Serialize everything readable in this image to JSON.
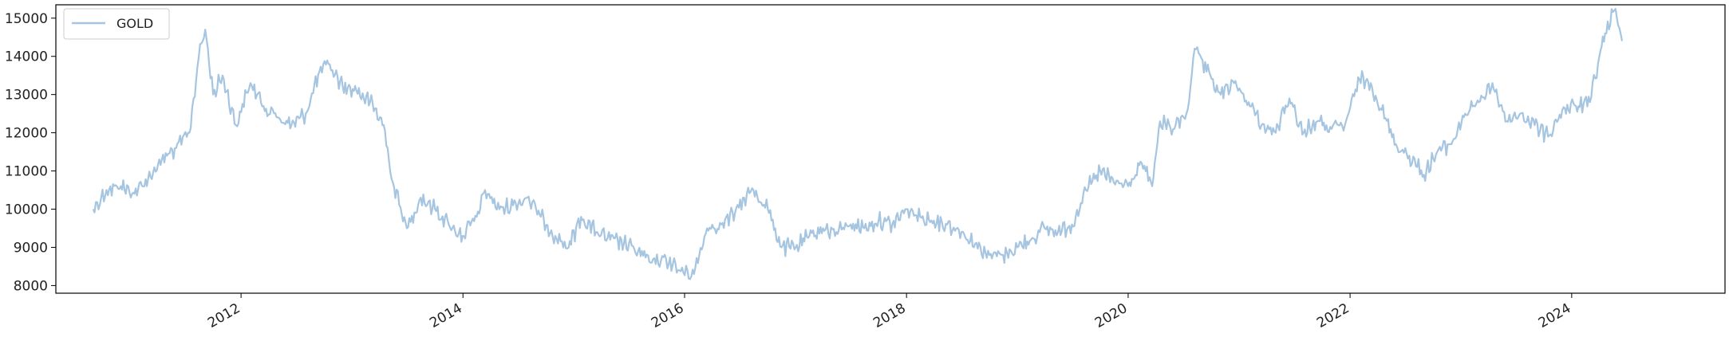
{
  "chart_data": {
    "type": "line",
    "title": "",
    "xlabel": "",
    "ylabel": "",
    "legend": {
      "placement": "top-left",
      "entries": [
        "GOLD"
      ]
    },
    "grid": false,
    "xlim": [
      "2010-05-01",
      "2025-05-20"
    ],
    "ylim": [
      7800,
      15350
    ],
    "x_ticks": [
      {
        "date": "2012-01-01",
        "label": "2012"
      },
      {
        "date": "2014-01-01",
        "label": "2014"
      },
      {
        "date": "2016-01-01",
        "label": "2016"
      },
      {
        "date": "2018-01-01",
        "label": "2018"
      },
      {
        "date": "2020-01-01",
        "label": "2020"
      },
      {
        "date": "2022-01-01",
        "label": "2022"
      },
      {
        "date": "2024-01-01",
        "label": "2024"
      }
    ],
    "y_ticks": [
      8000,
      9000,
      10000,
      11000,
      12000,
      13000,
      14000,
      15000
    ],
    "series": [
      {
        "name": "GOLD",
        "color": "#a6c5e0",
        "x": [
          "2010-09-01",
          "2010-10-15",
          "2010-12-01",
          "2011-01-15",
          "2011-03-01",
          "2011-04-15",
          "2011-06-01",
          "2011-07-15",
          "2011-08-15",
          "2011-09-05",
          "2011-10-01",
          "2011-11-01",
          "2011-12-15",
          "2012-02-01",
          "2012-03-15",
          "2012-05-01",
          "2012-06-15",
          "2012-08-01",
          "2012-09-15",
          "2012-10-15",
          "2012-12-01",
          "2013-01-15",
          "2013-03-01",
          "2013-04-15",
          "2013-05-15",
          "2013-06-30",
          "2013-08-15",
          "2013-10-01",
          "2013-11-15",
          "2013-12-31",
          "2014-02-15",
          "2014-03-15",
          "2014-05-01",
          "2014-06-15",
          "2014-08-01",
          "2014-09-15",
          "2014-11-01",
          "2014-12-15",
          "2015-01-25",
          "2015-03-15",
          "2015-05-01",
          "2015-06-15",
          "2015-08-01",
          "2015-09-15",
          "2015-11-01",
          "2015-12-15",
          "2016-02-01",
          "2016-03-15",
          "2016-05-01",
          "2016-06-15",
          "2016-07-15",
          "2016-08-15",
          "2016-10-01",
          "2016-11-15",
          "2017-01-01",
          "2017-02-15",
          "2017-04-01",
          "2017-05-15",
          "2017-07-01",
          "2017-08-15",
          "2017-10-01",
          "2017-11-15",
          "2018-01-01",
          "2018-02-15",
          "2018-04-01",
          "2018-05-15",
          "2018-07-01",
          "2018-08-15",
          "2018-10-01",
          "2018-11-15",
          "2019-01-01",
          "2019-02-15",
          "2019-04-01",
          "2019-05-15",
          "2019-06-30",
          "2019-08-15",
          "2019-10-01",
          "2019-11-15",
          "2020-01-01",
          "2020-02-15",
          "2020-03-20",
          "2020-04-15",
          "2020-06-01",
          "2020-07-15",
          "2020-08-07",
          "2020-09-15",
          "2020-11-01",
          "2020-12-15",
          "2021-02-01",
          "2021-03-15",
          "2021-05-01",
          "2021-06-15",
          "2021-08-01",
          "2021-09-15",
          "2021-11-01",
          "2021-12-15",
          "2022-02-01",
          "2022-03-10",
          "2022-04-15",
          "2022-06-01",
          "2022-07-15",
          "2022-09-01",
          "2022-10-15",
          "2022-12-01",
          "2023-01-15",
          "2023-03-01",
          "2023-04-15",
          "2023-06-01",
          "2023-07-15",
          "2023-09-01",
          "2023-10-15",
          "2023-12-01",
          "2024-01-15",
          "2024-03-01",
          "2024-04-01",
          "2024-04-20",
          "2024-05-20",
          "2024-06-15"
        ],
        "values": [
          10000,
          10500,
          10600,
          10400,
          10800,
          11300,
          11600,
          12000,
          14000,
          14700,
          13000,
          13500,
          12200,
          13300,
          12700,
          12400,
          12200,
          12500,
          13600,
          13800,
          13200,
          13100,
          12800,
          12200,
          10700,
          9500,
          10300,
          10000,
          9600,
          9300,
          9800,
          10500,
          10000,
          10100,
          10300,
          9800,
          9300,
          9000,
          9800,
          9400,
          9200,
          9100,
          8900,
          8600,
          8700,
          8400,
          8300,
          9500,
          9600,
          9900,
          10300,
          10500,
          10000,
          9000,
          9000,
          9300,
          9500,
          9400,
          9600,
          9500,
          9700,
          9600,
          10000,
          9800,
          9700,
          9600,
          9400,
          9100,
          8800,
          8800,
          9000,
          9200,
          9500,
          9400,
          9600,
          10500,
          11000,
          10700,
          10600,
          11200,
          10600,
          12300,
          12100,
          12600,
          14200,
          13600,
          13000,
          13300,
          12800,
          12200,
          12000,
          12900,
          12000,
          12300,
          12100,
          12200,
          13400,
          13300,
          12600,
          11700,
          11400,
          10900,
          11500,
          11700,
          12500,
          12800,
          13300,
          12300,
          12500,
          12200,
          11900,
          12600,
          12700,
          12800,
          14000,
          14600,
          15200,
          14400
        ]
      }
    ]
  }
}
